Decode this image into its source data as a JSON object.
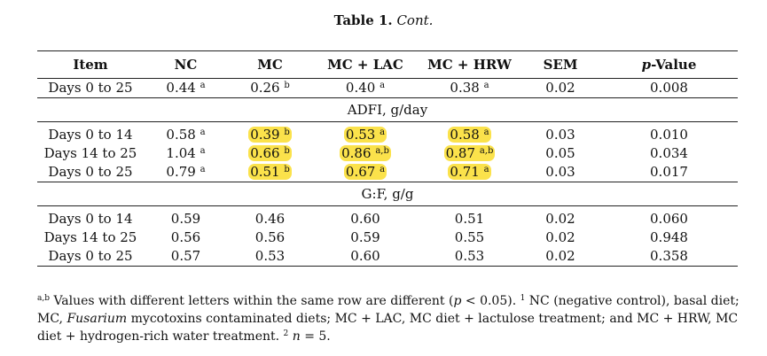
{
  "caption": {
    "label": "Table 1.",
    "cont": "Cont."
  },
  "headers": [
    "Item",
    "NC",
    "MC",
    "MC + LAC",
    "MC + HRW",
    "SEM",
    "-Value"
  ],
  "header_p": "p",
  "sections": [
    {
      "title": "",
      "rows": [
        {
          "item": "Days 0 to 25",
          "nc": "0.44",
          "nc_sup": "a",
          "mc": "0.26",
          "mc_sup": "b",
          "lac": "0.40",
          "lac_sup": "a",
          "hrw": "0.38",
          "hrw_sup": "a",
          "sem": "0.02",
          "p": "0.008"
        }
      ]
    },
    {
      "title": "ADFI, g/day",
      "rows": [
        {
          "item": "Days 0 to 14",
          "nc": "0.58",
          "nc_sup": "a",
          "mc": "0.39",
          "mc_sup": "b",
          "lac": "0.53",
          "lac_sup": "a",
          "hrw": "0.58",
          "hrw_sup": "a",
          "sem": "0.03",
          "p": "0.010"
        },
        {
          "item": "Days 14 to 25",
          "nc": "1.04",
          "nc_sup": "a",
          "mc": "0.66",
          "mc_sup": "b",
          "lac": "0.86",
          "lac_sup": "a,b",
          "hrw": "0.87",
          "hrw_sup": "a,b",
          "sem": "0.05",
          "p": "0.034"
        },
        {
          "item": "Days 0 to 25",
          "nc": "0.79",
          "nc_sup": "a",
          "mc": "0.51",
          "mc_sup": "b",
          "lac": "0.67",
          "lac_sup": "a",
          "hrw": "0.71",
          "hrw_sup": "a",
          "sem": "0.03",
          "p": "0.017"
        }
      ]
    },
    {
      "title": "G:F, g/g",
      "rows": [
        {
          "item": "Days 0 to 14",
          "nc": "0.59",
          "mc": "0.46",
          "lac": "0.60",
          "hrw": "0.51",
          "sem": "0.02",
          "p": "0.060"
        },
        {
          "item": "Days 14 to 25",
          "nc": "0.56",
          "mc": "0.56",
          "lac": "0.59",
          "hrw": "0.55",
          "sem": "0.02",
          "p": "0.948"
        },
        {
          "item": "Days 0 to 25",
          "nc": "0.57",
          "mc": "0.53",
          "lac": "0.60",
          "hrw": "0.53",
          "sem": "0.02",
          "p": "0.358"
        }
      ]
    }
  ],
  "highlight_color": "#fbe24b",
  "footnote": {
    "sup1": "a,b",
    "t1": " Values with different letters within the same row are different (",
    "p_letter": "p",
    "t2": " < 0.05). ",
    "sup2": "1",
    "t3": " NC (negative control), basal diet; MC, ",
    "fusarium": "Fusarium",
    "t4": " mycotoxins contaminated diets; MC + LAC, MC diet + lactulose treatment; and MC + HRW, MC diet + hydrogen-rich water treatment. ",
    "sup3": "2",
    "n_letter": "n",
    "t5": " = 5."
  }
}
